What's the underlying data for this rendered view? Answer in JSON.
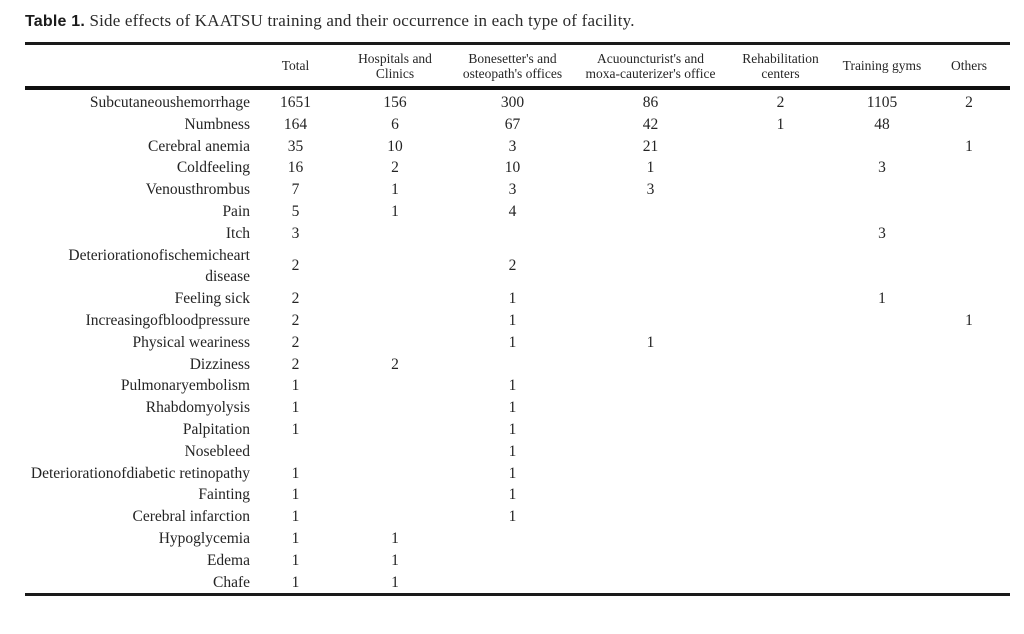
{
  "title": {
    "label": "Table 1.",
    "text": " Side effects of KAATSU training and their occurrence in each type of facility."
  },
  "table": {
    "headers": [
      {
        "name": "row-label",
        "lines": []
      },
      {
        "name": "total",
        "lines": [
          "Total"
        ]
      },
      {
        "name": "hospitals-clinics",
        "lines": [
          "Hospitals and",
          "Clinics"
        ]
      },
      {
        "name": "bonesetters-osteopaths",
        "lines": [
          "Bonesetter's and",
          "osteopath's offices"
        ]
      },
      {
        "name": "acupuncturists-moxa",
        "lines": [
          "Acuouncturist's and",
          "moxa-cauterizer's office"
        ]
      },
      {
        "name": "rehabilitation-centers",
        "lines": [
          "Rehabilitation",
          "centers"
        ]
      },
      {
        "name": "training-gyms",
        "lines": [
          "Training gyms"
        ]
      },
      {
        "name": "others",
        "lines": [
          "Others"
        ]
      }
    ],
    "rows": [
      {
        "label": "Subcutaneoushemorrhage",
        "values": [
          "1651",
          "156",
          "300",
          "86",
          "2",
          "1105",
          "2"
        ]
      },
      {
        "label": "Numbness",
        "values": [
          "164",
          "6",
          "67",
          "42",
          "1",
          "48",
          ""
        ]
      },
      {
        "label": "Cerebral anemia",
        "values": [
          "35",
          "10",
          "3",
          "21",
          "",
          "",
          "1"
        ]
      },
      {
        "label": "Coldfeeling",
        "values": [
          "16",
          "2",
          "10",
          "1",
          "",
          "3",
          ""
        ]
      },
      {
        "label": "Venousthrombus",
        "values": [
          "7",
          "1",
          "3",
          "3",
          "",
          "",
          ""
        ]
      },
      {
        "label": "Pain",
        "values": [
          "5",
          "1",
          "4",
          "",
          "",
          "",
          ""
        ]
      },
      {
        "label": "Itch",
        "values": [
          "3",
          "",
          "",
          "",
          "",
          "3",
          ""
        ]
      },
      {
        "label": "Deteriorationofischemicheart disease",
        "values": [
          "2",
          "",
          "2",
          "",
          "",
          "",
          ""
        ]
      },
      {
        "label": "Feeling sick",
        "values": [
          "2",
          "",
          "1",
          "",
          "",
          "1",
          ""
        ]
      },
      {
        "label": "Increasingofbloodpressure",
        "values": [
          "2",
          "",
          "1",
          "",
          "",
          "",
          "1"
        ]
      },
      {
        "label": "Physical weariness",
        "values": [
          "2",
          "",
          "1",
          "1",
          "",
          "",
          ""
        ]
      },
      {
        "label": "Dizziness",
        "values": [
          "2",
          "2",
          "",
          "",
          "",
          "",
          ""
        ]
      },
      {
        "label": "Pulmonaryembolism",
        "values": [
          "1",
          "",
          "1",
          "",
          "",
          "",
          ""
        ]
      },
      {
        "label": "Rhabdomyolysis",
        "values": [
          "1",
          "",
          "1",
          "",
          "",
          "",
          ""
        ]
      },
      {
        "label": "Palpitation",
        "values": [
          "1",
          "",
          "1",
          "",
          "",
          "",
          ""
        ]
      },
      {
        "label": "Nosebleed",
        "values": [
          "",
          "",
          "1",
          "",
          "",
          "",
          ""
        ]
      },
      {
        "label": "Deteriorationofdiabetic retinopathy",
        "values": [
          "1",
          "",
          "1",
          "",
          "",
          "",
          ""
        ]
      },
      {
        "label": "Fainting",
        "values": [
          "1",
          "",
          "1",
          "",
          "",
          "",
          ""
        ]
      },
      {
        "label": "Cerebral infarction",
        "values": [
          "1",
          "",
          "1",
          "",
          "",
          "",
          ""
        ]
      },
      {
        "label": "Hypoglycemia",
        "values": [
          "1",
          "1",
          "",
          "",
          "",
          "",
          ""
        ]
      },
      {
        "label": "Edema",
        "values": [
          "1",
          "1",
          "",
          "",
          "",
          "",
          ""
        ]
      },
      {
        "label": "Chafe",
        "values": [
          "1",
          "1",
          "",
          "",
          "",
          "",
          ""
        ]
      }
    ]
  },
  "colors": {
    "text": "#242424",
    "rule": "#1a1a1a",
    "background": "#ffffff"
  }
}
